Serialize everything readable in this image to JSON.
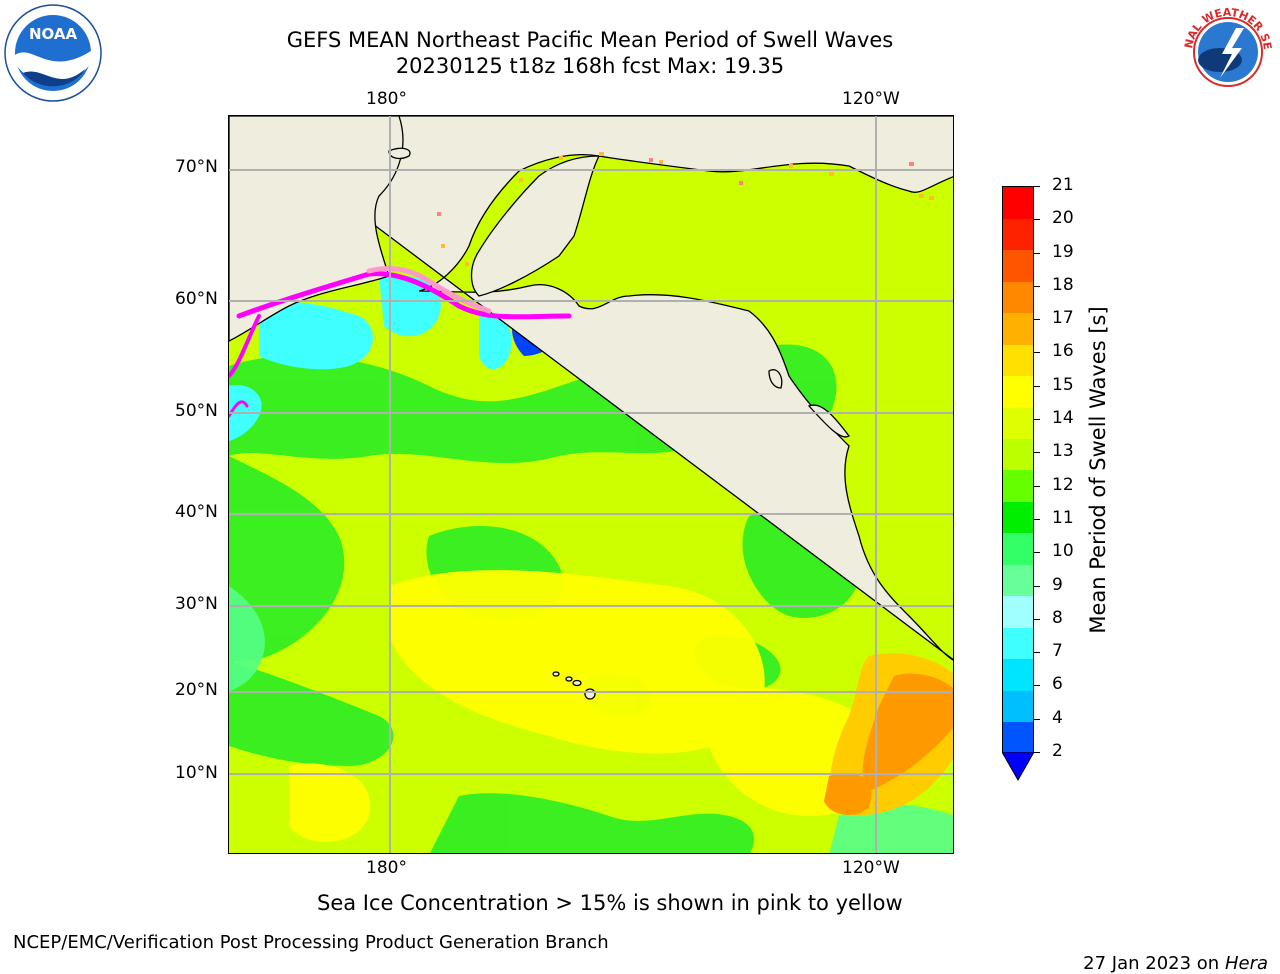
{
  "title": {
    "line1": "GEFS MEAN Northeast Pacific Mean Period of Swell Waves",
    "line2": "20230125 t18z 168h fcst   Max: 19.35"
  },
  "logos": {
    "left": {
      "icon": "noaa-logo",
      "text": "NOAA"
    },
    "right": {
      "icon": "national-weather-service-logo",
      "text": "NATIONAL WEATHER SERVICE"
    }
  },
  "map": {
    "lon_ticks_top": [
      "180°",
      "120°W"
    ],
    "lon_ticks_bottom": [
      "180°",
      "120°W"
    ],
    "lat_ticks": [
      "70°N",
      "60°N",
      "50°N",
      "40°N",
      "30°N",
      "20°N",
      "10°N"
    ],
    "land_color": "#efedde",
    "grid_color": "#b0b0b0",
    "ice_colors": [
      "#ff00ff",
      "#ff66cc",
      "#ffa0a0",
      "#ffcc00"
    ]
  },
  "colorbar": {
    "title": "Mean Period of Swell Waves [s]",
    "tick_labels": [
      "2",
      "4",
      "6",
      "7",
      "8",
      "9",
      "10",
      "11",
      "12",
      "13",
      "14",
      "15",
      "16",
      "17",
      "18",
      "19",
      "20",
      "21"
    ],
    "colors": [
      "#0055ff",
      "#00bfff",
      "#00e5ff",
      "#40ffff",
      "#a0ffff",
      "#66ff99",
      "#33ff66",
      "#00ee00",
      "#66ff00",
      "#bbff00",
      "#ddff00",
      "#ffff00",
      "#ffe000",
      "#ffb000",
      "#ff8800",
      "#ff5500",
      "#ff2200",
      "#ff0000"
    ],
    "extend_min_color": "#0000ff"
  },
  "caption": "Sea Ice Concentration > 15% is shown in pink to yellow",
  "footer": {
    "left": "NCEP/EMC/Verification Post Processing Product Generation Branch",
    "right_date": "27 Jan 2023 on ",
    "right_host": "Hera"
  }
}
